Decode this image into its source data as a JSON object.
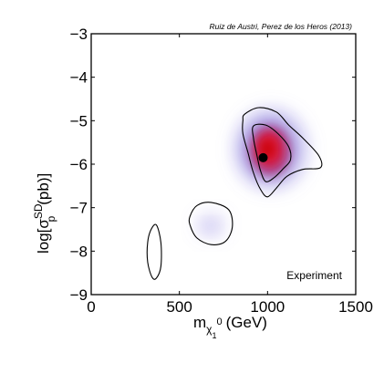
{
  "chart_data": {
    "type": "contour",
    "credit": "Ruiz de Austri, Perez de los Heros (2013)",
    "annotation": "Experiment",
    "xlabel": {
      "base": "m",
      "sub": "χ",
      "sub_sub": "1",
      "sup": "0",
      "tail": "(GeV)"
    },
    "ylabel": {
      "prefix": "log[σ",
      "sup": "SD",
      "sub": "p",
      "tail": "(pb)]"
    },
    "xlim": [
      0,
      1500
    ],
    "ylim": [
      -9,
      -3
    ],
    "xticks": [
      {
        "value": 0,
        "label": "0"
      },
      {
        "value": 500,
        "label": "500"
      },
      {
        "value": 1000,
        "label": "1000"
      },
      {
        "value": 1500,
        "label": "1500"
      }
    ],
    "yticks": [
      {
        "value": -3,
        "label": "−3"
      },
      {
        "value": -4,
        "label": "−4"
      },
      {
        "value": -5,
        "label": "−5"
      },
      {
        "value": -6,
        "label": "−6"
      },
      {
        "value": -7,
        "label": "−7"
      },
      {
        "value": -8,
        "label": "−8"
      },
      {
        "value": -9,
        "label": "−9"
      }
    ],
    "best_fit_point": {
      "x": 975,
      "y": -5.85
    },
    "contours": [
      {
        "name": "outer-main",
        "points": [
          [
            870,
            -4.85
          ],
          [
            950,
            -4.7
          ],
          [
            1050,
            -4.8
          ],
          [
            1120,
            -5.1
          ],
          [
            1200,
            -5.4
          ],
          [
            1290,
            -5.8
          ],
          [
            1300,
            -6.08
          ],
          [
            1200,
            -6.12
          ],
          [
            1110,
            -6.28
          ],
          [
            1050,
            -6.55
          ],
          [
            1000,
            -6.75
          ],
          [
            960,
            -6.58
          ],
          [
            920,
            -6.2
          ],
          [
            890,
            -5.75
          ],
          [
            860,
            -5.3
          ],
          [
            860,
            -5.0
          ]
        ]
      },
      {
        "name": "inner-main",
        "points": [
          [
            920,
            -5.12
          ],
          [
            990,
            -5.1
          ],
          [
            1060,
            -5.3
          ],
          [
            1120,
            -5.6
          ],
          [
            1130,
            -5.9
          ],
          [
            1090,
            -6.1
          ],
          [
            1040,
            -6.3
          ],
          [
            990,
            -6.4
          ],
          [
            960,
            -6.15
          ],
          [
            940,
            -5.8
          ],
          [
            920,
            -5.4
          ]
        ]
      },
      {
        "name": "middle-island",
        "points": [
          [
            560,
            -7.2
          ],
          [
            600,
            -6.95
          ],
          [
            680,
            -6.88
          ],
          [
            780,
            -7.05
          ],
          [
            800,
            -7.45
          ],
          [
            760,
            -7.78
          ],
          [
            680,
            -7.85
          ],
          [
            600,
            -7.7
          ],
          [
            560,
            -7.4
          ]
        ]
      },
      {
        "name": "left-island",
        "points": [
          [
            340,
            -7.5
          ],
          [
            370,
            -7.4
          ],
          [
            395,
            -7.8
          ],
          [
            395,
            -8.35
          ],
          [
            370,
            -8.62
          ],
          [
            345,
            -8.6
          ],
          [
            320,
            -8.25
          ],
          [
            320,
            -7.8
          ]
        ]
      }
    ],
    "density_blobs": [
      {
        "x": 1020,
        "y": -5.65,
        "rx": 215,
        "ry": 0.95,
        "opacity": 0.35,
        "color": "#8a7ee0"
      },
      {
        "x": 1010,
        "y": -5.65,
        "rx": 150,
        "ry": 0.7,
        "opacity": 0.55,
        "color": "#6b5ad0"
      },
      {
        "x": 1015,
        "y": -5.7,
        "rx": 110,
        "ry": 0.55,
        "opacity": 0.85,
        "color": "#b0306e"
      },
      {
        "x": 1010,
        "y": -5.65,
        "rx": 75,
        "ry": 0.4,
        "opacity": 0.95,
        "color": "#e0143c"
      },
      {
        "x": 1000,
        "y": -5.65,
        "rx": 40,
        "ry": 0.22,
        "opacity": 1.0,
        "color": "#c80000"
      },
      {
        "x": 680,
        "y": -7.4,
        "rx": 85,
        "ry": 0.3,
        "opacity": 0.25,
        "color": "#8a7ee0"
      },
      {
        "x": 670,
        "y": -7.45,
        "rx": 45,
        "ry": 0.14,
        "opacity": 0.45,
        "color": "#b8b0f0"
      }
    ],
    "colors": {
      "contour_line": "#000000",
      "best_fit_marker": "#000000"
    }
  }
}
